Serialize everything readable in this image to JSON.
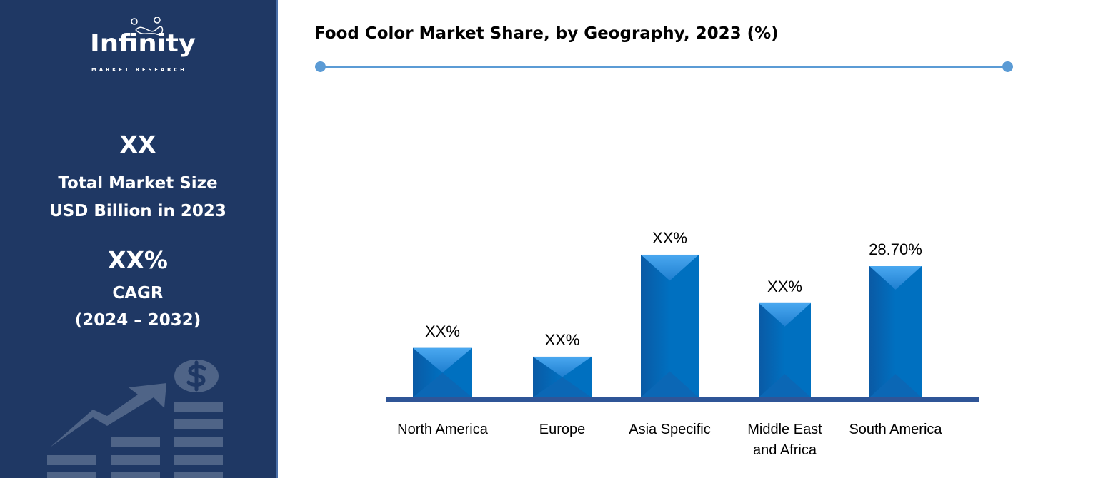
{
  "sidebar": {
    "logo_text": "Infinity",
    "logo_sub": "MARKET RESEARCH",
    "market_size_value": "XX",
    "market_size_label_1": "Total Market Size",
    "market_size_label_2": "USD Billion in 2023",
    "cagr_value": "XX%",
    "cagr_label": "CAGR",
    "cagr_period": "(2024 – 2032)",
    "icon": "growth-chart-dollar-icon"
  },
  "chart_data": {
    "type": "bar",
    "title": "Food Color Market Share, by Geography, 2023 (%)",
    "categories": [
      "North America",
      "Europe",
      "Asia Specific",
      "Middle East and Africa",
      "South America"
    ],
    "category_lines": [
      [
        "North America"
      ],
      [
        "Europe"
      ],
      [
        "Asia Specific"
      ],
      [
        "Middle East",
        "and Africa"
      ],
      [
        "South America"
      ]
    ],
    "values": [
      10.8,
      8.9,
      31.2,
      20.6,
      28.7
    ],
    "data_labels": [
      "XX%",
      "XX%",
      "XX%",
      "XX%",
      "28.70%"
    ],
    "ylim": [
      0,
      33
    ],
    "grid": false,
    "colors": {
      "bar": "#0070c0",
      "bar_light": "#3a9be8",
      "axis": "#2f5597",
      "accent": "#5b9bd5",
      "sidebar": "#1f3864"
    }
  }
}
